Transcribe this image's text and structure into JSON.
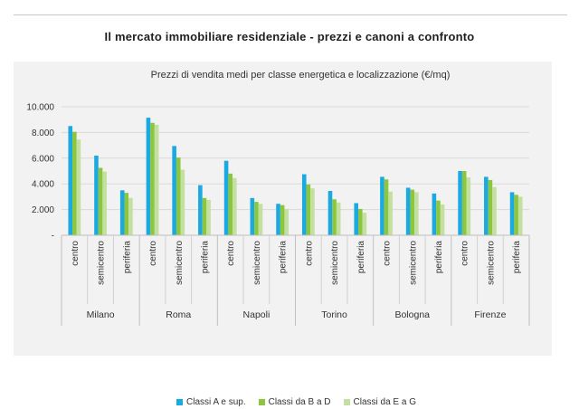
{
  "page_title": "Il mercato immobiliare residenziale - prezzi e canoni a confronto",
  "colors": {
    "series_a": "#1ba9e1",
    "series_b": "#8cc63f",
    "series_c": "#c3e0a1",
    "grid": "#d9d9d9",
    "panel": "#f2f2f2"
  },
  "chart_data": {
    "type": "bar",
    "title": "Prezzi di vendita medi per classe energetica e localizzazione (€/mq)",
    "xlabel": "",
    "ylabel": "",
    "ylim": [
      0,
      10000
    ],
    "yticks": [
      "-",
      "2.000",
      "4.000",
      "6.000",
      "8.000",
      "10.000"
    ],
    "grid": true,
    "legend_position": "bottom",
    "groups": [
      "Milano",
      "Roma",
      "Napoli",
      "Torino",
      "Bologna",
      "Firenze"
    ],
    "subcategories": [
      "centro",
      "semicentro",
      "periferia"
    ],
    "series": [
      {
        "name": "Classi A e sup.",
        "color": "#1ba9e1",
        "values": [
          8500,
          6200,
          3500,
          9150,
          6950,
          3900,
          5800,
          2900,
          2450,
          4750,
          3450,
          2500,
          4550,
          3700,
          3250,
          5000,
          4550,
          3350
        ]
      },
      {
        "name": "Classi da B a D",
        "color": "#8cc63f",
        "values": [
          8050,
          5250,
          3300,
          8750,
          6050,
          2900,
          4800,
          2600,
          2350,
          3950,
          2800,
          2050,
          4350,
          3550,
          2700,
          5000,
          4300,
          3150
        ]
      },
      {
        "name": "Classi da E a G",
        "color": "#c3e0a1",
        "values": [
          7450,
          4950,
          2900,
          8600,
          5100,
          2750,
          4450,
          2450,
          2050,
          3650,
          2550,
          1750,
          3400,
          3350,
          2400,
          4500,
          3750,
          3000
        ]
      }
    ]
  }
}
